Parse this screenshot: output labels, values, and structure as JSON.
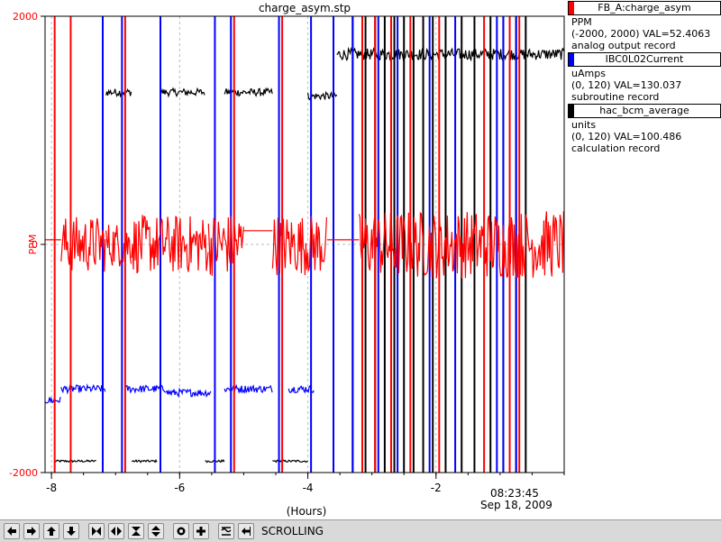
{
  "title": "charge_asym.stp",
  "legend": [
    {
      "name": "FB_A:charge_asym",
      "color": "#ff0000",
      "units": "PPM",
      "range_val": "(-2000, 2000) VAL=52.4063",
      "record": "analog output record"
    },
    {
      "name": "IBC0L02Current",
      "color": "#0000ff",
      "units": "uAmps",
      "range_val": "(0, 120) VAL=130.037",
      "record": "subroutine record"
    },
    {
      "name": "hac_bcm_average",
      "color": "#000000",
      "units": "units",
      "range_val": "(0, 120) VAL=100.486",
      "record": "calculation record"
    }
  ],
  "toolbar": {
    "status": "SCROLLING",
    "icons": [
      "arrow-left-icon",
      "arrow-right-icon",
      "arrow-up-icon",
      "arrow-down-icon",
      "zoom-in-x-icon",
      "zoom-out-x-icon",
      "zoom-in-y-icon",
      "zoom-out-y-icon",
      "record-icon",
      "crosshair-icon",
      "graph-mode-icon",
      "back-to-scroll-icon"
    ]
  },
  "chart_data": {
    "type": "line",
    "title": "charge_asym.stp",
    "xlabel": "(Hours)",
    "ylabel": "PPM",
    "xlim": [
      -8.1,
      0
    ],
    "ylim": [
      -2000,
      2000
    ],
    "x_ticks": [
      "-8",
      "-6",
      "-4",
      "-2"
    ],
    "y_ticks": [
      "-2000",
      "0",
      "2000"
    ],
    "end_time": "08:23:45",
    "end_date": "Sep 18, 2009",
    "grid": true,
    "series": [
      {
        "name": "FB_A:charge_asym",
        "color": "#ff0000",
        "segments": [
          {
            "x0": -8.1,
            "x1": -7.85,
            "level": 40,
            "noise": 0
          },
          {
            "x0": -7.85,
            "x1": -7.15,
            "level": 0,
            "noise": 250
          },
          {
            "x0": -7.15,
            "x1": -6.75,
            "level": 0,
            "noise": 200
          },
          {
            "x0": -6.75,
            "x1": -5.55,
            "level": 0,
            "noise": 260
          },
          {
            "x0": -5.55,
            "x1": -5.0,
            "level": 0,
            "noise": 280
          },
          {
            "x0": -5.0,
            "x1": -4.55,
            "level": 120,
            "noise": 0
          },
          {
            "x0": -4.55,
            "x1": -3.7,
            "level": 0,
            "noise": 270
          },
          {
            "x0": -3.7,
            "x1": -3.2,
            "level": 40,
            "noise": 0
          },
          {
            "x0": -3.2,
            "x1": 0,
            "level": 0,
            "noise": 300
          }
        ],
        "spikes": [
          -7.95,
          -7.7,
          -6.85,
          -5.15,
          -4.4,
          -3.15,
          -2.95,
          -2.7,
          -2.4,
          -1.95,
          -1.25,
          -0.85,
          -0.7
        ]
      },
      {
        "name": "IBC0L02Current",
        "color": "#0000ff",
        "segments": [
          {
            "x0": -8.1,
            "x1": -7.85,
            "level": 19,
            "noise": 1
          },
          {
            "x0": -7.85,
            "x1": -7.15,
            "level": 22,
            "noise": 1
          },
          {
            "x0": -6.85,
            "x1": -6.2,
            "level": 22,
            "noise": 1
          },
          {
            "x0": -6.2,
            "x1": -5.5,
            "level": 21,
            "noise": 1
          },
          {
            "x0": -5.3,
            "x1": -4.55,
            "level": 22,
            "noise": 1
          },
          {
            "x0": -4.3,
            "x1": -3.9,
            "level": 22,
            "noise": 1
          }
        ],
        "spikes": [
          -7.2,
          -6.9,
          -6.3,
          -5.45,
          -5.2,
          -4.45,
          -3.95,
          -3.6,
          -3.3,
          -2.9,
          -2.6,
          -2.1,
          -1.7,
          -1.05,
          -0.95,
          -0.75
        ]
      },
      {
        "name": "hac_bcm_average",
        "color": "#000000",
        "segments": [
          {
            "x0": -7.95,
            "x1": -7.3,
            "level": 3,
            "noise": 0.3
          },
          {
            "x0": -7.15,
            "x1": -6.75,
            "level": 100,
            "noise": 1
          },
          {
            "x0": -6.75,
            "x1": -6.35,
            "level": 3,
            "noise": 0.3
          },
          {
            "x0": -6.3,
            "x1": -5.6,
            "level": 100,
            "noise": 1
          },
          {
            "x0": -5.6,
            "x1": -5.3,
            "level": 3,
            "noise": 0.3
          },
          {
            "x0": -5.3,
            "x1": -4.55,
            "level": 100,
            "noise": 1
          },
          {
            "x0": -4.55,
            "x1": -4.0,
            "level": 3,
            "noise": 0.3
          },
          {
            "x0": -4.0,
            "x1": -3.55,
            "level": 99,
            "noise": 1
          },
          {
            "x0": -3.55,
            "x1": 0,
            "level": 110,
            "noise": 1.5
          }
        ],
        "spikes": [
          -3.3,
          -3.1,
          -2.95,
          -2.8,
          -2.65,
          -2.5,
          -2.35,
          -2.2,
          -2.05,
          -1.85,
          -1.6,
          -1.4,
          -1.15,
          -0.95,
          -0.75,
          -0.6
        ]
      }
    ]
  }
}
